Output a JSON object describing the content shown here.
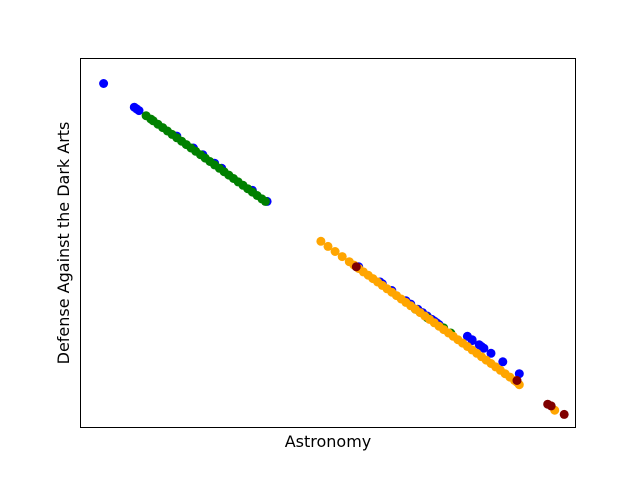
{
  "chart_data": {
    "type": "scatter",
    "title": "",
    "xlabel": "Astronomy",
    "ylabel": "Defense Against the Dark Arts",
    "xlim": [
      -1050,
      1050
    ],
    "ylim": [
      -10.4,
      11.4
    ],
    "x_ticks_shown": false,
    "y_ticks_shown": false,
    "grid": false,
    "legend": "none",
    "series": [
      {
        "color": "#0000ff",
        "points": [
          [
            -950,
            9.9
          ],
          [
            -820,
            8.5
          ],
          [
            -810,
            8.4
          ],
          [
            -800,
            8.3
          ],
          [
            -640,
            6.8
          ],
          [
            -570,
            6.1
          ],
          [
            -530,
            5.7
          ],
          [
            -480,
            5.2
          ],
          [
            -450,
            4.9
          ],
          [
            -320,
            3.6
          ],
          [
            -258,
            2.95
          ],
          [
            450,
            -4.1
          ],
          [
            460,
            -4.2
          ],
          [
            470,
            -4.3
          ],
          [
            400,
            -3.6
          ],
          [
            420,
            -3.8
          ],
          [
            220,
            -1.8
          ],
          [
            270,
            -2.3
          ],
          [
            230,
            -1.9
          ],
          [
            640,
            -5.5
          ],
          [
            690,
            -6.0
          ],
          [
            740,
            -6.5
          ],
          [
            590,
            -5.0
          ],
          [
            610,
            -5.2
          ],
          [
            440,
            -4.0
          ],
          [
            330,
            -2.9
          ],
          [
            350,
            -3.1
          ],
          [
            380,
            -3.4
          ],
          [
            130,
            -0.9
          ],
          [
            610,
            -5.25
          ],
          [
            650,
            -5.6
          ],
          [
            660,
            -5.7
          ],
          [
            810,
            -7.2
          ]
        ]
      },
      {
        "color": "#008000",
        "points": [
          [
            -770,
            8.0
          ],
          [
            -750,
            7.8
          ],
          [
            -740,
            7.7
          ],
          [
            -720,
            7.5
          ],
          [
            -700,
            7.3
          ],
          [
            -680,
            7.1
          ],
          [
            -660,
            6.9
          ],
          [
            -640,
            6.7
          ],
          [
            -620,
            6.5
          ],
          [
            -600,
            6.3
          ],
          [
            -580,
            6.1
          ],
          [
            -560,
            5.9
          ],
          [
            -540,
            5.7
          ],
          [
            -520,
            5.5
          ],
          [
            -500,
            5.3
          ],
          [
            -480,
            5.1
          ],
          [
            -460,
            4.9
          ],
          [
            -440,
            4.7
          ],
          [
            -420,
            4.5
          ],
          [
            -400,
            4.3
          ],
          [
            -380,
            4.1
          ],
          [
            -360,
            3.9
          ],
          [
            -340,
            3.7
          ],
          [
            -320,
            3.5
          ],
          [
            -300,
            3.3
          ],
          [
            -280,
            3.1
          ],
          [
            -265,
            2.95
          ],
          [
            370,
            -3.4
          ],
          [
            420,
            -3.9
          ],
          [
            490,
            -4.5
          ],
          [
            520,
            -4.8
          ]
        ]
      },
      {
        "color": "#ffa500",
        "points": [
          [
            -30,
            0.6
          ],
          [
            0,
            0.3
          ],
          [
            30,
            0.0
          ],
          [
            60,
            -0.3
          ],
          [
            90,
            -0.6
          ],
          [
            110,
            -0.8
          ],
          [
            130,
            -1.0
          ],
          [
            150,
            -1.2
          ],
          [
            170,
            -1.4
          ],
          [
            190,
            -1.6
          ],
          [
            210,
            -1.8
          ],
          [
            230,
            -2.0
          ],
          [
            250,
            -2.2
          ],
          [
            270,
            -2.4
          ],
          [
            290,
            -2.6
          ],
          [
            310,
            -2.8
          ],
          [
            330,
            -3.0
          ],
          [
            350,
            -3.2
          ],
          [
            370,
            -3.4
          ],
          [
            390,
            -3.6
          ],
          [
            410,
            -3.8
          ],
          [
            430,
            -4.0
          ],
          [
            450,
            -4.2
          ],
          [
            470,
            -4.4
          ],
          [
            490,
            -4.6
          ],
          [
            510,
            -4.8
          ],
          [
            530,
            -5.0
          ],
          [
            550,
            -5.2
          ],
          [
            570,
            -5.4
          ],
          [
            590,
            -5.6
          ],
          [
            610,
            -5.8
          ],
          [
            630,
            -6.0
          ],
          [
            650,
            -6.2
          ],
          [
            670,
            -6.4
          ],
          [
            690,
            -6.6
          ],
          [
            710,
            -6.8
          ],
          [
            730,
            -7.0
          ],
          [
            750,
            -7.2
          ],
          [
            770,
            -7.4
          ],
          [
            790,
            -7.6
          ],
          [
            800,
            -7.7
          ],
          [
            810,
            -7.85
          ],
          [
            960,
            -9.35
          ]
        ]
      },
      {
        "color": "#800000",
        "points": [
          [
            120,
            -0.9
          ],
          [
            800,
            -7.6
          ],
          [
            930,
            -9.0
          ],
          [
            945,
            -9.1
          ],
          [
            1000,
            -9.6
          ]
        ]
      }
    ]
  }
}
